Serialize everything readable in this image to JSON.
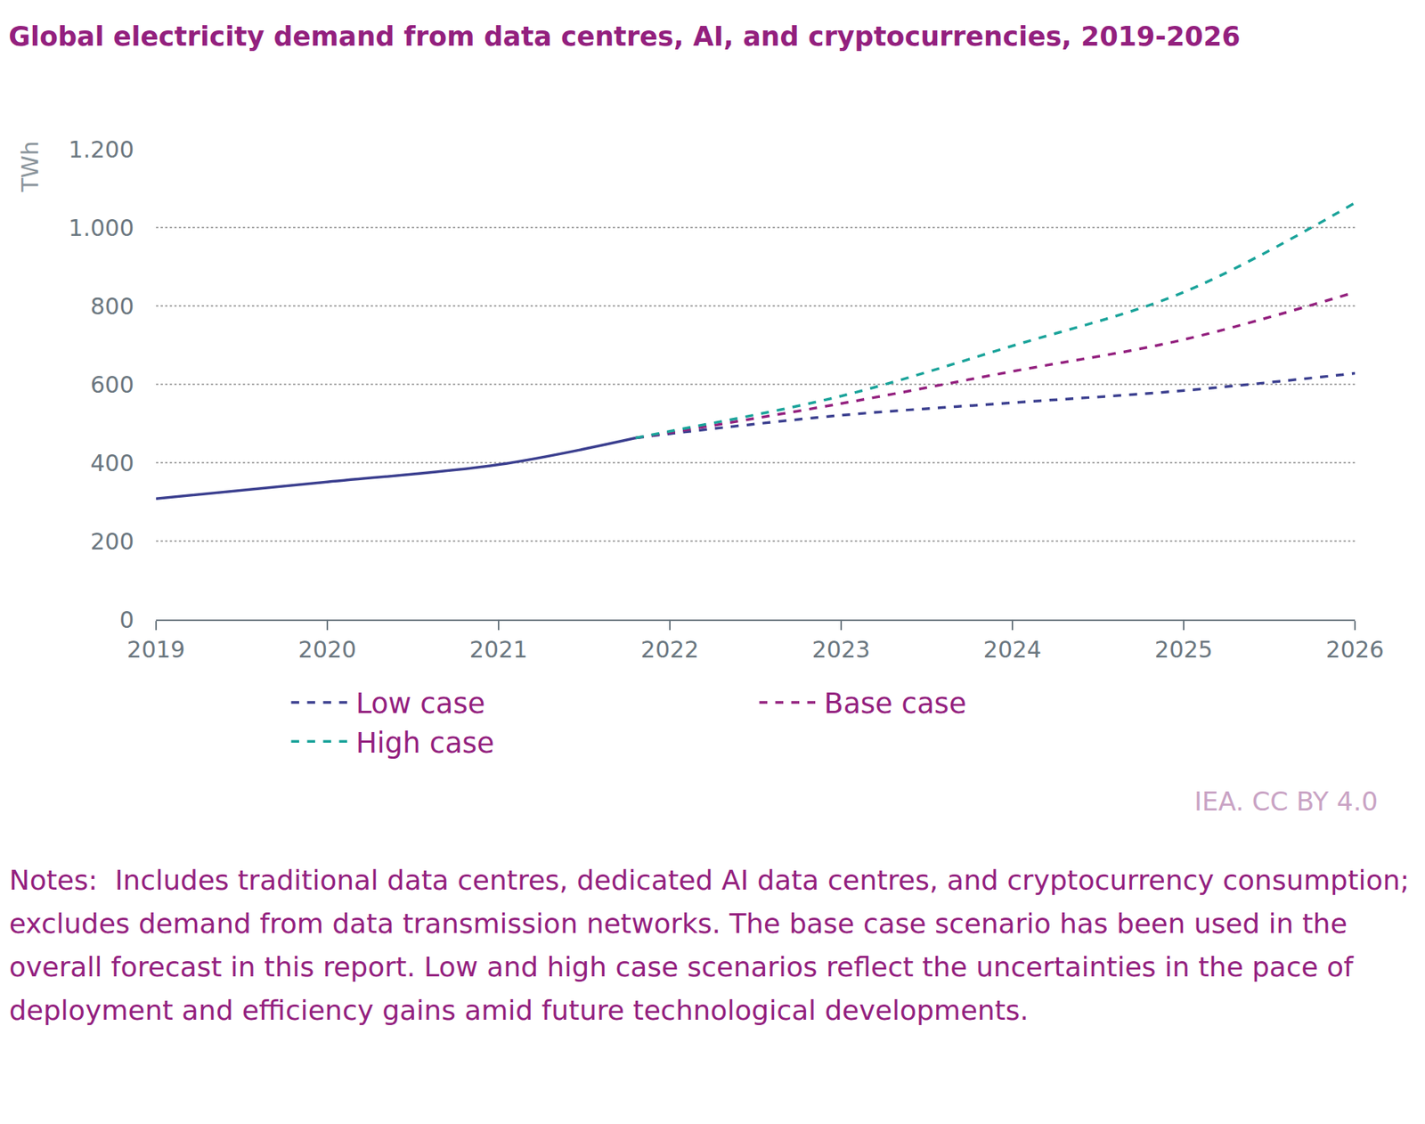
{
  "chart_data": {
    "type": "line",
    "title": "Global electricity demand from data centres, AI, and cryptocurrencies, 2019-2026",
    "y_label": "TWh",
    "source": "IEA. CC BY 4.0",
    "notes": "Notes:  Includes traditional data centres, dedicated AI data centres, and cryptocurrency consumption; excludes demand from data transmission networks. The base case scenario has been used in the overall forecast in this report. Low and high case scenarios reflect the uncertainties in the pace of deployment and efficiency gains amid future technological developments.",
    "xlim": [
      2019,
      2026
    ],
    "xticks": [
      2019,
      2020,
      2021,
      2022,
      2023,
      2024,
      2025,
      2026
    ],
    "ylim": [
      0,
      1200
    ],
    "yticks": [
      0,
      200,
      400,
      600,
      800,
      {
        "value": 1000,
        "label": "1.000"
      },
      {
        "value": 1200,
        "label": "1.200"
      }
    ],
    "grid": true,
    "legend": "bottom",
    "series": [
      {
        "color": "#3b3f8f",
        "line_style": "solid",
        "x": [
          2019,
          2020,
          2021,
          2021.8
        ],
        "values": [
          308,
          351,
          395,
          463
        ]
      },
      {
        "name": "Low case",
        "color": "#3b3f8f",
        "line_style": "dash",
        "x": [
          2021.8,
          2022,
          2023,
          2024,
          2025,
          2026
        ],
        "values": [
          463,
          474,
          521,
          553,
          584,
          628
        ]
      },
      {
        "name": "Base case",
        "color": "#93207e",
        "line_style": "dash",
        "x": [
          2021.8,
          2022,
          2023,
          2024,
          2025,
          2026
        ],
        "values": [
          463,
          477,
          551,
          633,
          714,
          835
        ]
      },
      {
        "name": "High case",
        "color": "#1aa39a",
        "line_style": "dash",
        "x": [
          2021.8,
          2022,
          2023,
          2024,
          2025,
          2026
        ],
        "values": [
          463,
          480,
          570,
          698,
          835,
          1063
        ]
      }
    ]
  }
}
